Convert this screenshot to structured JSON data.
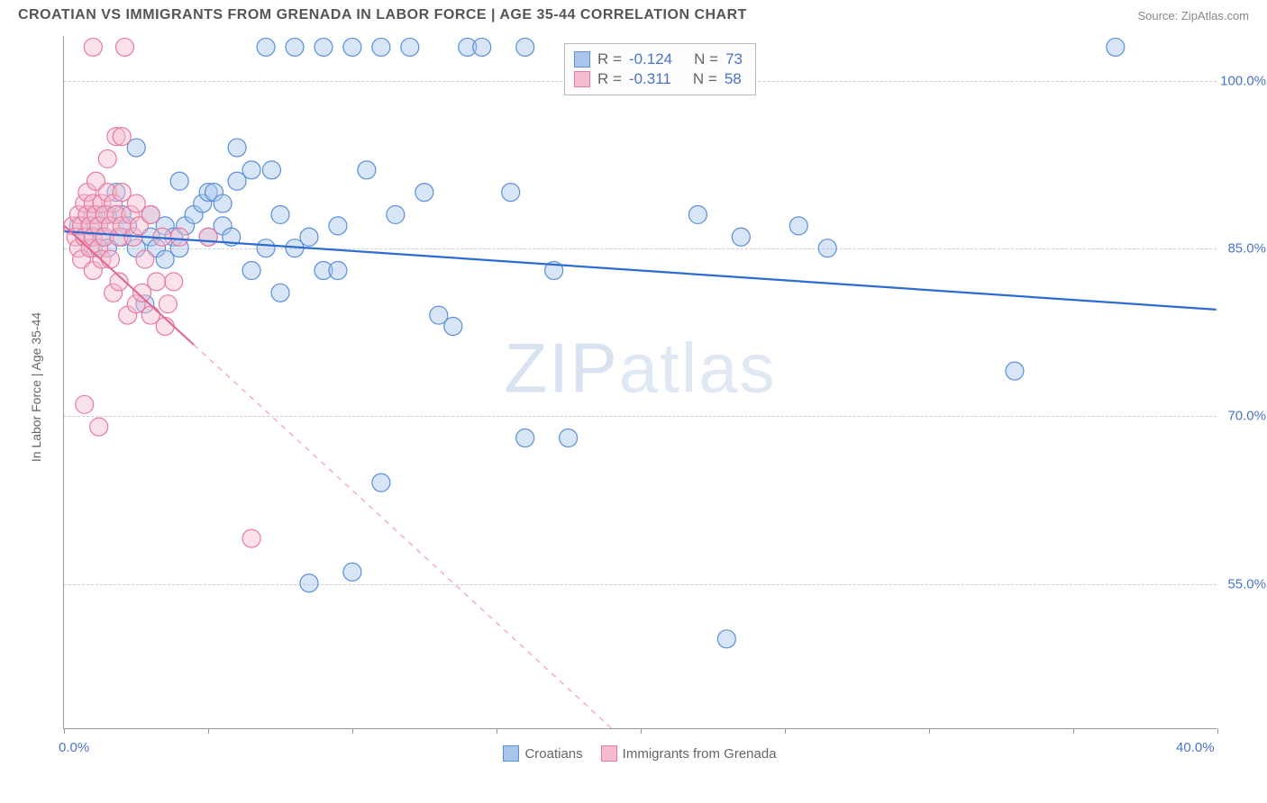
{
  "title": "CROATIAN VS IMMIGRANTS FROM GRENADA IN LABOR FORCE | AGE 35-44 CORRELATION CHART",
  "source": "Source: ZipAtlas.com",
  "watermark": "ZIPatlas",
  "y_axis_title": "In Labor Force | Age 35-44",
  "chart": {
    "type": "scatter-correlation",
    "background_color": "#ffffff",
    "grid_color": "#cccccc",
    "axis_color": "#999999",
    "xlim": [
      0,
      40
    ],
    "ylim": [
      42,
      104
    ],
    "x_ticks": [
      0,
      5,
      10,
      15,
      20,
      25,
      30,
      35,
      40
    ],
    "x_labels": [
      {
        "v": 0,
        "t": "0.0%"
      },
      {
        "v": 40,
        "t": "40.0%"
      }
    ],
    "y_gridlines": [
      55,
      70,
      85,
      100
    ],
    "y_labels": [
      "55.0%",
      "70.0%",
      "85.0%",
      "100.0%"
    ],
    "label_color": "#4a74c9",
    "label_fontsize": 15,
    "marker_radius": 10,
    "marker_opacity": 0.45,
    "marker_stroke_width": 1.2,
    "series": [
      {
        "name": "Croatians",
        "fill": "#a9c5ec",
        "stroke": "#5b8fd6",
        "line_color": "#2d6cd0",
        "line_width": 2.2,
        "r_value": "-0.124",
        "n_value": "73",
        "trend": {
          "x1": 0,
          "y1": 86.5,
          "x2": 40,
          "y2": 79.5,
          "solid_to_x": 40
        },
        "points": [
          [
            0.5,
            87
          ],
          [
            0.8,
            86
          ],
          [
            1.0,
            88
          ],
          [
            1.0,
            85
          ],
          [
            1.2,
            87
          ],
          [
            1.3,
            86
          ],
          [
            1.5,
            88
          ],
          [
            1.5,
            85
          ],
          [
            1.8,
            90
          ],
          [
            2.0,
            86
          ],
          [
            2.0,
            88
          ],
          [
            2.2,
            87
          ],
          [
            2.5,
            94
          ],
          [
            2.5,
            85
          ],
          [
            2.8,
            80
          ],
          [
            3.0,
            86
          ],
          [
            3.0,
            88
          ],
          [
            3.2,
            85
          ],
          [
            3.5,
            87
          ],
          [
            3.5,
            84
          ],
          [
            3.8,
            86
          ],
          [
            4.0,
            91
          ],
          [
            4.0,
            85
          ],
          [
            4.2,
            87
          ],
          [
            4.5,
            88
          ],
          [
            4.8,
            89
          ],
          [
            5.0,
            90
          ],
          [
            5.0,
            86
          ],
          [
            5.2,
            90
          ],
          [
            5.5,
            89
          ],
          [
            5.5,
            87
          ],
          [
            5.8,
            86
          ],
          [
            6.0,
            91
          ],
          [
            6.0,
            94
          ],
          [
            6.5,
            92
          ],
          [
            6.5,
            83
          ],
          [
            7.0,
            103
          ],
          [
            7.0,
            85
          ],
          [
            7.2,
            92
          ],
          [
            7.5,
            88
          ],
          [
            7.5,
            81
          ],
          [
            8.0,
            103
          ],
          [
            8.0,
            85
          ],
          [
            8.5,
            86
          ],
          [
            8.5,
            55
          ],
          [
            9.0,
            103
          ],
          [
            9.0,
            83
          ],
          [
            9.5,
            83
          ],
          [
            9.5,
            87
          ],
          [
            10.0,
            103
          ],
          [
            10.0,
            56
          ],
          [
            10.5,
            92
          ],
          [
            11.0,
            103
          ],
          [
            11.0,
            64
          ],
          [
            11.5,
            88
          ],
          [
            12.0,
            103
          ],
          [
            12.5,
            90
          ],
          [
            13.0,
            79
          ],
          [
            13.5,
            78
          ],
          [
            14.0,
            103
          ],
          [
            14.5,
            103
          ],
          [
            15.5,
            90
          ],
          [
            16.0,
            103
          ],
          [
            16.0,
            68
          ],
          [
            17.0,
            83
          ],
          [
            17.5,
            68
          ],
          [
            22.0,
            88
          ],
          [
            23.0,
            50
          ],
          [
            23.5,
            86
          ],
          [
            25.5,
            87
          ],
          [
            26.5,
            85
          ],
          [
            33.0,
            74
          ],
          [
            36.5,
            103
          ]
        ]
      },
      {
        "name": "Immigrants from Grenada",
        "fill": "#f6bcce",
        "stroke": "#e67ba0",
        "line_color": "#e56290",
        "line_width": 2.0,
        "r_value": "-0.311",
        "n_value": "58",
        "trend": {
          "x1": 0,
          "y1": 87,
          "x2": 19,
          "y2": 42,
          "solid_to_x": 4.5
        },
        "points": [
          [
            0.3,
            87
          ],
          [
            0.4,
            86
          ],
          [
            0.5,
            88
          ],
          [
            0.5,
            85
          ],
          [
            0.6,
            87
          ],
          [
            0.6,
            84
          ],
          [
            0.7,
            89
          ],
          [
            0.7,
            86
          ],
          [
            0.8,
            88
          ],
          [
            0.8,
            90
          ],
          [
            0.9,
            87
          ],
          [
            0.9,
            85
          ],
          [
            1.0,
            89
          ],
          [
            1.0,
            86
          ],
          [
            1.0,
            83
          ],
          [
            1.1,
            88
          ],
          [
            1.1,
            91
          ],
          [
            1.2,
            87
          ],
          [
            1.2,
            85
          ],
          [
            1.3,
            89
          ],
          [
            1.3,
            84
          ],
          [
            1.4,
            88
          ],
          [
            1.4,
            86
          ],
          [
            1.5,
            90
          ],
          [
            1.5,
            93
          ],
          [
            1.6,
            87
          ],
          [
            1.6,
            84
          ],
          [
            1.7,
            89
          ],
          [
            1.7,
            81
          ],
          [
            1.8,
            88
          ],
          [
            1.8,
            95
          ],
          [
            1.9,
            86
          ],
          [
            1.9,
            82
          ],
          [
            2.0,
            90
          ],
          [
            2.0,
            87
          ],
          [
            2.1,
            103
          ],
          [
            2.2,
            79
          ],
          [
            2.3,
            88
          ],
          [
            2.4,
            86
          ],
          [
            2.5,
            80
          ],
          [
            2.5,
            89
          ],
          [
            2.6,
            87
          ],
          [
            2.7,
            81
          ],
          [
            2.8,
            84
          ],
          [
            3.0,
            79
          ],
          [
            3.0,
            88
          ],
          [
            3.2,
            82
          ],
          [
            3.4,
            86
          ],
          [
            3.5,
            78
          ],
          [
            3.6,
            80
          ],
          [
            3.8,
            82
          ],
          [
            4.0,
            86
          ],
          [
            1.0,
            103
          ],
          [
            0.7,
            71
          ],
          [
            1.2,
            69
          ],
          [
            2.0,
            95
          ],
          [
            5.0,
            86
          ],
          [
            6.5,
            59
          ]
        ]
      }
    ]
  },
  "stats_box": {
    "rows": [
      {
        "fill": "#a9c5ec",
        "stroke": "#5b8fd6",
        "r_label": "R =",
        "r": "-0.124",
        "n_label": "N =",
        "n": "73"
      },
      {
        "fill": "#f6bcce",
        "stroke": "#e67ba0",
        "r_label": "R =",
        "r": "-0.311",
        "n_label": "N =",
        "n": "58"
      }
    ]
  },
  "legend": {
    "items": [
      {
        "fill": "#a9c5ec",
        "stroke": "#5b8fd6",
        "label": "Croatians"
      },
      {
        "fill": "#f6bcce",
        "stroke": "#e67ba0",
        "label": "Immigrants from Grenada"
      }
    ]
  }
}
